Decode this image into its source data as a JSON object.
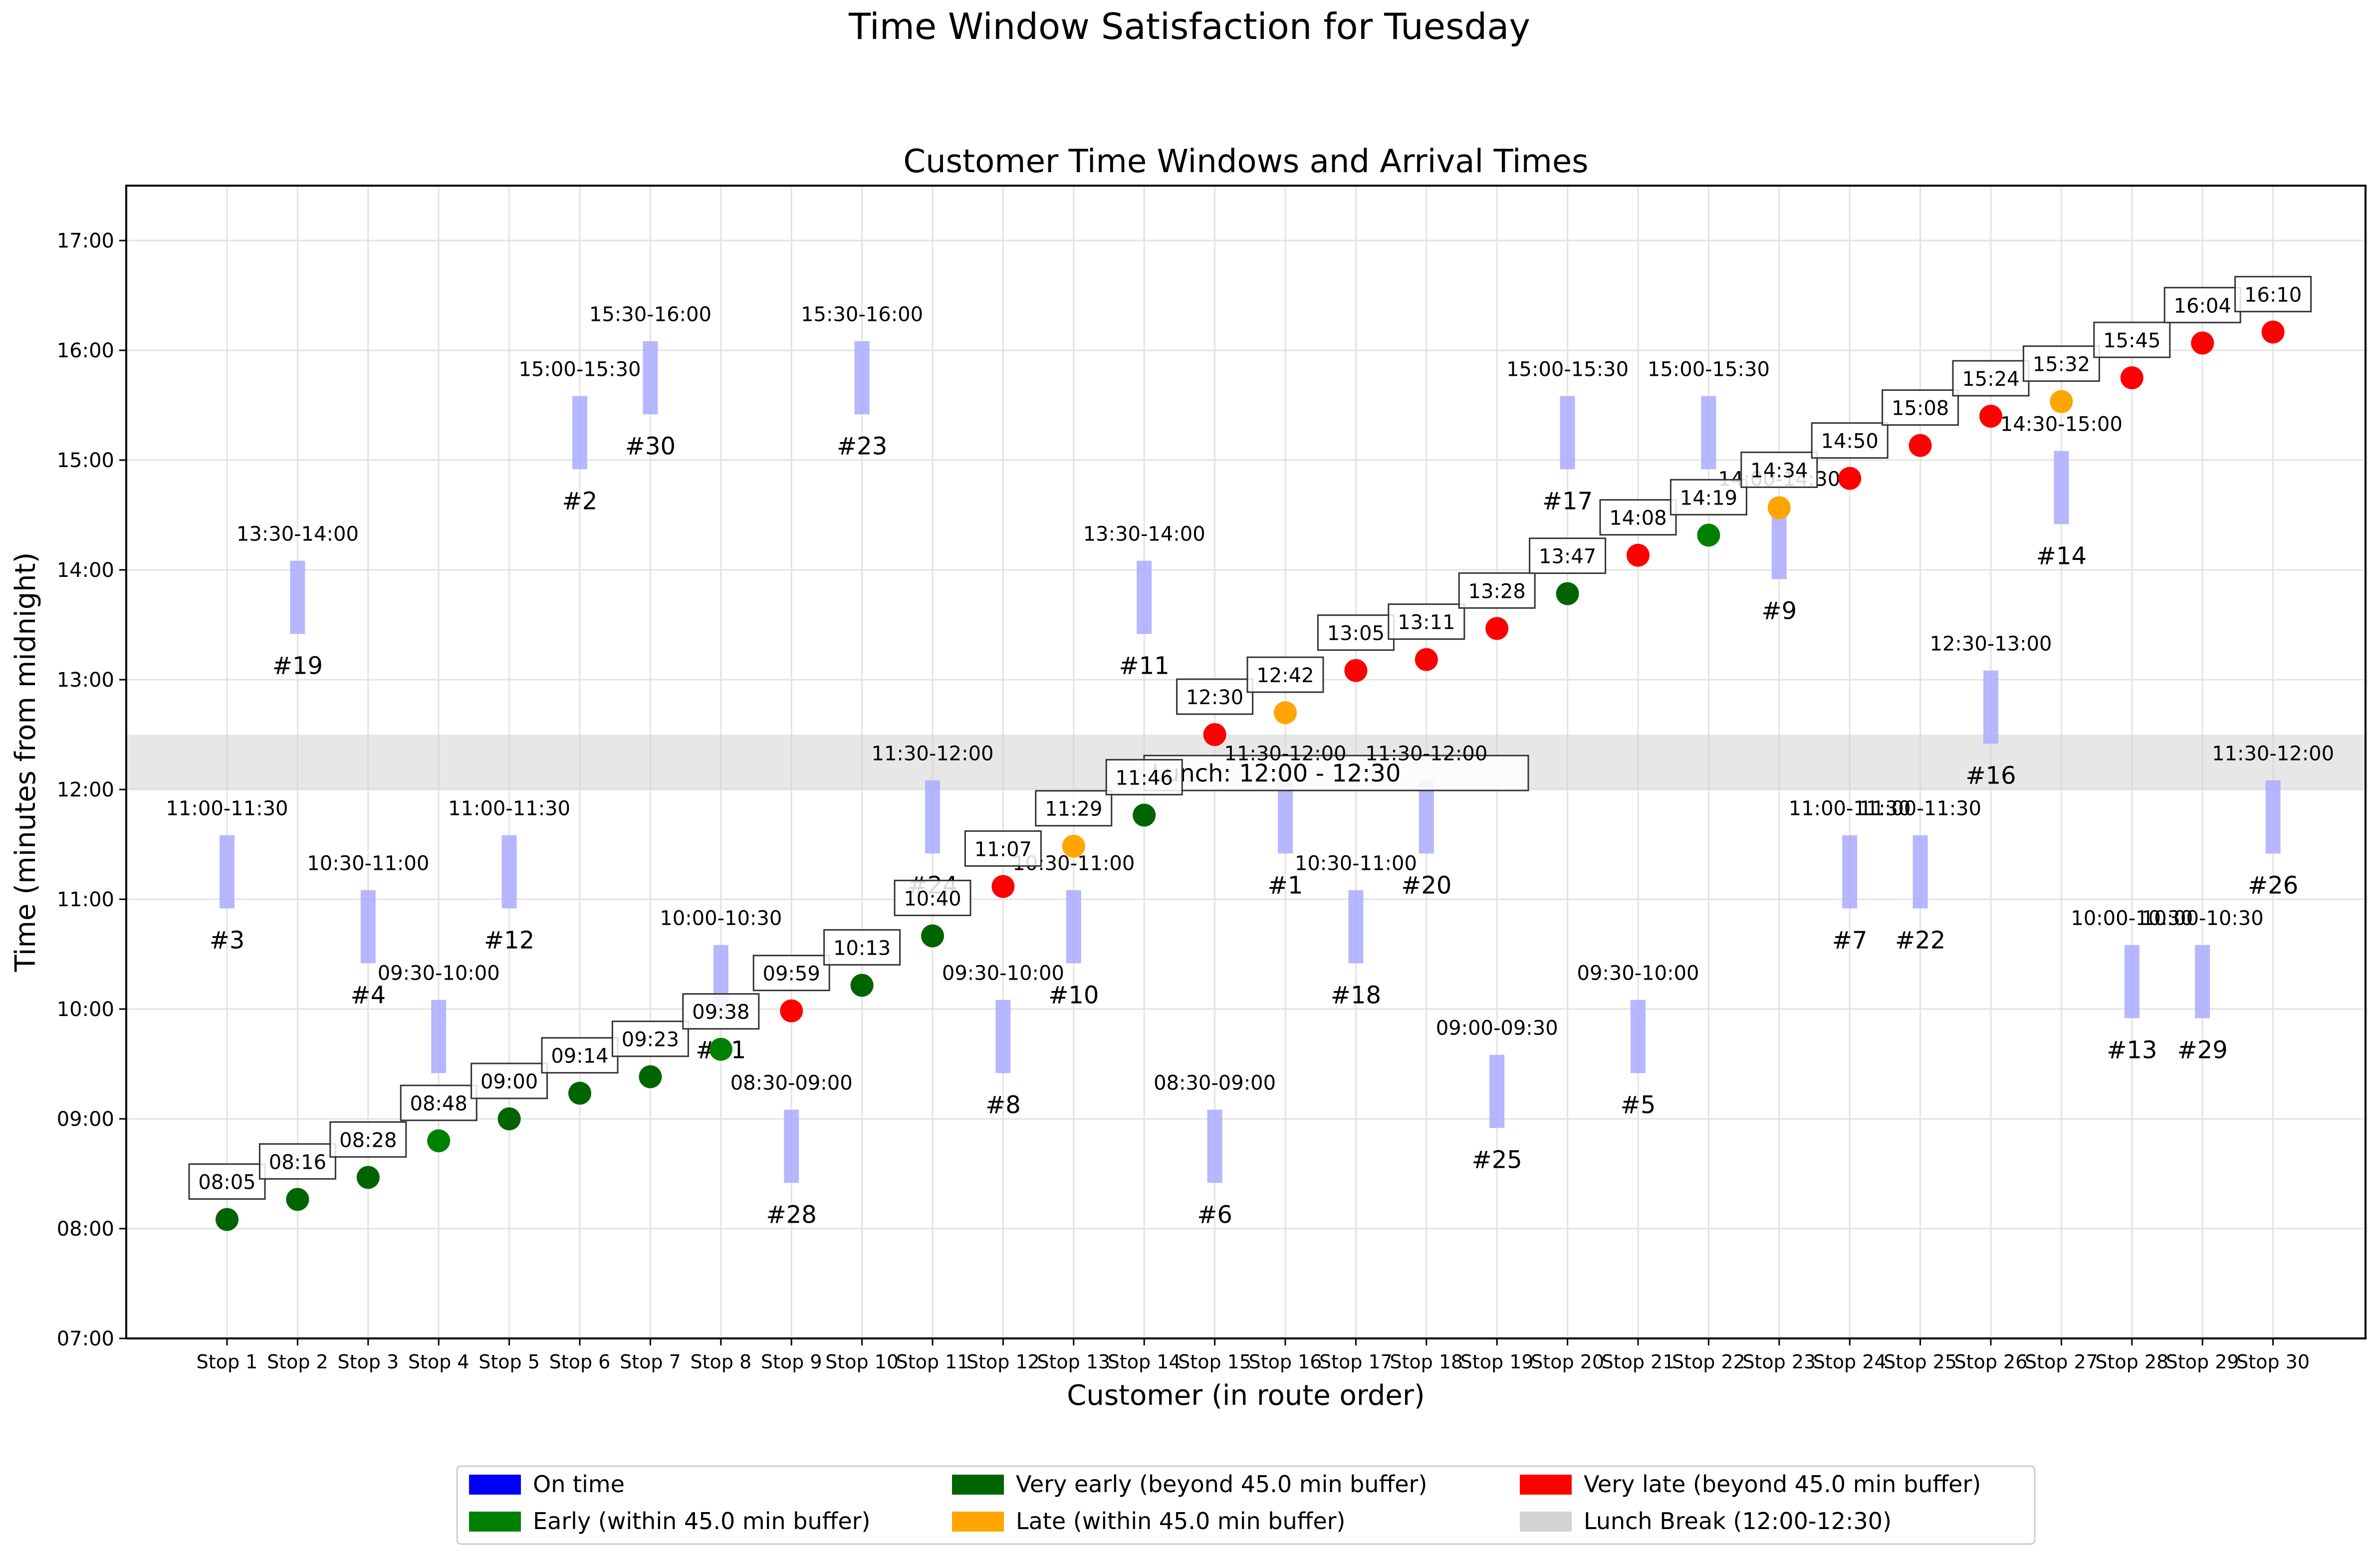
{
  "chart_data": {
    "type": "scatter",
    "title": "Time Window Satisfaction for Tuesday",
    "subtitle": "Customer Time Windows and Arrival Times",
    "xlabel": "Customer (in route order)",
    "ylabel": "Time (minutes from midnight)",
    "ylim": [
      "07:00",
      "17:30"
    ],
    "y_ticks": [
      "07:00",
      "08:00",
      "09:00",
      "10:00",
      "11:00",
      "12:00",
      "13:00",
      "14:00",
      "15:00",
      "16:00",
      "17:00"
    ],
    "grid": true,
    "lunch_break": {
      "start": "12:00",
      "end": "12:30",
      "label": "Lunch: 12:00 - 12:30"
    },
    "colors": {
      "on_time": "#0000ff",
      "early": "#008000",
      "very_early": "#006400",
      "late": "#ffa500",
      "very_late": "#ff0000",
      "lunch": "#d3d3d3",
      "window": "#aaaaff"
    },
    "stops": [
      {
        "stop": "Stop 1",
        "customer": "#3",
        "window_label": "11:00-11:30",
        "window": [
          "11:00",
          "11:30"
        ],
        "arrival": "08:05",
        "status": "very_early"
      },
      {
        "stop": "Stop 2",
        "customer": "#19",
        "window_label": "13:30-14:00",
        "window": [
          "13:30",
          "14:00"
        ],
        "arrival": "08:16",
        "status": "very_early"
      },
      {
        "stop": "Stop 3",
        "customer": "#4",
        "window_label": "10:30-11:00",
        "window": [
          "10:30",
          "11:00"
        ],
        "arrival": "08:28",
        "status": "very_early"
      },
      {
        "stop": "Stop 4",
        "customer": "",
        "window_label": "09:30-10:00",
        "window": [
          "09:30",
          "10:00"
        ],
        "arrival": "08:48",
        "status": "early"
      },
      {
        "stop": "Stop 5",
        "customer": "#12",
        "window_label": "11:00-11:30",
        "window": [
          "11:00",
          "11:30"
        ],
        "arrival": "09:00",
        "status": "very_early"
      },
      {
        "stop": "Stop 6",
        "customer": "#2",
        "window_label": "15:00-15:30",
        "window": [
          "15:00",
          "15:30"
        ],
        "arrival": "09:14",
        "status": "very_early"
      },
      {
        "stop": "Stop 7",
        "customer": "#30",
        "window_label": "15:30-16:00",
        "window": [
          "15:30",
          "16:00"
        ],
        "arrival": "09:23",
        "status": "very_early"
      },
      {
        "stop": "Stop 8",
        "customer": "#21",
        "window_label": "10:00-10:30",
        "window": [
          "10:00",
          "10:30"
        ],
        "arrival": "09:38",
        "status": "early"
      },
      {
        "stop": "Stop 9",
        "customer": "#28",
        "window_label": "08:30-09:00",
        "window": [
          "08:30",
          "09:00"
        ],
        "arrival": "09:59",
        "status": "very_late"
      },
      {
        "stop": "Stop 10",
        "customer": "#23",
        "window_label": "15:30-16:00",
        "window": [
          "15:30",
          "16:00"
        ],
        "arrival": "10:13",
        "status": "very_early"
      },
      {
        "stop": "Stop 11",
        "customer": "#24",
        "window_label": "11:30-12:00",
        "window": [
          "11:30",
          "12:00"
        ],
        "arrival": "10:40",
        "status": "very_early"
      },
      {
        "stop": "Stop 12",
        "customer": "#8",
        "window_label": "09:30-10:00",
        "window": [
          "09:30",
          "10:00"
        ],
        "arrival": "11:07",
        "status": "very_late"
      },
      {
        "stop": "Stop 13",
        "customer": "#10",
        "window_label": "10:30-11:00",
        "window": [
          "10:30",
          "11:00"
        ],
        "arrival": "11:29",
        "status": "late"
      },
      {
        "stop": "Stop 14",
        "customer": "#11",
        "window_label": "13:30-14:00",
        "window": [
          "13:30",
          "14:00"
        ],
        "arrival": "11:46",
        "status": "very_early"
      },
      {
        "stop": "Stop 15",
        "customer": "#6",
        "window_label": "08:30-09:00",
        "window": [
          "08:30",
          "09:00"
        ],
        "arrival": "12:30",
        "status": "very_late"
      },
      {
        "stop": "Stop 16",
        "customer": "#1",
        "window_label": "11:30-12:00",
        "window": [
          "11:30",
          "12:00"
        ],
        "arrival": "12:42",
        "status": "late"
      },
      {
        "stop": "Stop 17",
        "customer": "#18",
        "window_label": "10:30-11:00",
        "window": [
          "10:30",
          "11:00"
        ],
        "arrival": "13:05",
        "status": "very_late"
      },
      {
        "stop": "Stop 18",
        "customer": "#20",
        "window_label": "11:30-12:00",
        "window": [
          "11:30",
          "12:00"
        ],
        "arrival": "13:11",
        "status": "very_late"
      },
      {
        "stop": "Stop 19",
        "customer": "#25",
        "window_label": "09:00-09:30",
        "window": [
          "09:00",
          "09:30"
        ],
        "arrival": "13:28",
        "status": "very_late"
      },
      {
        "stop": "Stop 20",
        "customer": "#17",
        "window_label": "15:00-15:30",
        "window": [
          "15:00",
          "15:30"
        ],
        "arrival": "13:47",
        "status": "very_early"
      },
      {
        "stop": "Stop 21",
        "customer": "#5",
        "window_label": "09:30-10:00",
        "window": [
          "09:30",
          "10:00"
        ],
        "arrival": "14:08",
        "status": "very_late"
      },
      {
        "stop": "Stop 22",
        "customer": "",
        "window_label": "15:00-15:30",
        "window": [
          "15:00",
          "15:30"
        ],
        "arrival": "14:19",
        "status": "early"
      },
      {
        "stop": "Stop 23",
        "customer": "#9",
        "window_label": "14:00-14:30",
        "window": [
          "14:00",
          "14:30"
        ],
        "arrival": "14:34",
        "status": "late"
      },
      {
        "stop": "Stop 24",
        "customer": "#7",
        "window_label": "11:00-11:30",
        "window": [
          "11:00",
          "11:30"
        ],
        "arrival": "14:50",
        "status": "very_late"
      },
      {
        "stop": "Stop 25",
        "customer": "#22",
        "window_label": "11:00-11:30",
        "window": [
          "11:00",
          "11:30"
        ],
        "arrival": "15:08",
        "status": "very_late"
      },
      {
        "stop": "Stop 26",
        "customer": "#16",
        "window_label": "12:30-13:00",
        "window": [
          "12:30",
          "13:00"
        ],
        "arrival": "15:24",
        "status": "very_late"
      },
      {
        "stop": "Stop 27",
        "customer": "#14",
        "window_label": "14:30-15:00",
        "window": [
          "14:30",
          "15:00"
        ],
        "arrival": "15:32",
        "status": "late"
      },
      {
        "stop": "Stop 28",
        "customer": "#13",
        "window_label": "10:00-10:30",
        "window": [
          "10:00",
          "10:30"
        ],
        "arrival": "15:45",
        "status": "very_late"
      },
      {
        "stop": "Stop 29",
        "customer": "#29",
        "window_label": "10:00-10:30",
        "window": [
          "10:00",
          "10:30"
        ],
        "arrival": "16:04",
        "status": "very_late"
      },
      {
        "stop": "Stop 30",
        "customer": "#26",
        "window_label": "11:30-12:00",
        "window": [
          "11:30",
          "12:00"
        ],
        "arrival": "16:10",
        "status": "very_late"
      }
    ],
    "legend": {
      "placement": "bottom-center",
      "items": [
        {
          "label": "On time",
          "color": "#0000ff"
        },
        {
          "label": "Early (within 45.0 min buffer)",
          "color": "#008000"
        },
        {
          "label": "Very early (beyond 45.0 min buffer)",
          "color": "#006400"
        },
        {
          "label": "Late (within 45.0 min buffer)",
          "color": "#ffa500"
        },
        {
          "label": "Very late (beyond 45.0 min buffer)",
          "color": "#ff0000"
        },
        {
          "label": "Lunch Break (12:00-12:30)",
          "color": "#d3d3d3"
        }
      ]
    }
  }
}
